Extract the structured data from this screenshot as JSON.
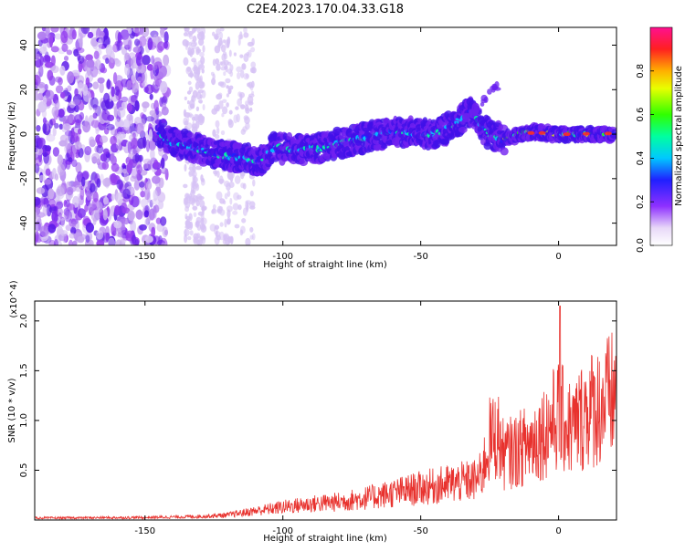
{
  "title": "C2E4.2023.170.04.33.G18",
  "chart_data": [
    {
      "type": "heatmap",
      "xlabel": "Height of straight line (km)",
      "ylabel": "Frequency (Hz)",
      "xlim": [
        -190,
        21
      ],
      "ylim": [
        -50,
        48
      ],
      "xticks": [
        -150,
        -100,
        -50,
        0
      ],
      "yticks": [
        -40,
        -20,
        0,
        20,
        40
      ],
      "colorbar": {
        "label": "Normalized spectral amplitude",
        "range": [
          0.0,
          1.0
        ],
        "ticks": [
          "0.0",
          "0.2",
          "0.4",
          "0.6",
          "0.8"
        ]
      },
      "ridge": [
        {
          "x": -143,
          "y": -3
        },
        {
          "x": -135,
          "y": -5
        },
        {
          "x": -125,
          "y": -9
        },
        {
          "x": -115,
          "y": -11
        },
        {
          "x": -108,
          "y": -12
        },
        {
          "x": -103,
          "y": -6
        },
        {
          "x": -95,
          "y": -7
        },
        {
          "x": -85,
          "y": -6
        },
        {
          "x": -75,
          "y": -3
        },
        {
          "x": -65,
          "y": 0
        },
        {
          "x": -55,
          "y": 1
        },
        {
          "x": -45,
          "y": 0
        },
        {
          "x": -38,
          "y": 4
        },
        {
          "x": -32,
          "y": 10
        },
        {
          "x": -25,
          "y": 0
        },
        {
          "x": -20,
          "y": -2
        },
        {
          "x": -10,
          "y": 1
        },
        {
          "x": 0,
          "y": 0
        },
        {
          "x": 10,
          "y": 0
        },
        {
          "x": 20,
          "y": 0
        }
      ]
    },
    {
      "type": "line",
      "xlabel": "Height of straight line (km)",
      "ylabel": "SNR (10 * v/v)",
      "y_multiplier": "(x10^4)",
      "xlim": [
        -190,
        21
      ],
      "ylim": [
        0,
        22000
      ],
      "xticks": [
        -150,
        -100,
        -50,
        0
      ],
      "yticks": [
        {
          "value": 5000,
          "label": "0.5"
        },
        {
          "value": 10000,
          "label": "1.0"
        },
        {
          "value": 15000,
          "label": "1.5"
        },
        {
          "value": 20000,
          "label": "2.0"
        }
      ],
      "color": "#e8322e",
      "series": [
        {
          "x": [
            -190,
            -170,
            -150,
            -130,
            -120,
            -110,
            -100,
            -90,
            -80,
            -70,
            -60,
            -50,
            -40,
            -30,
            -28,
            -25,
            -22,
            -20,
            -15,
            -10,
            -5,
            0,
            5,
            10,
            15,
            20
          ],
          "y": [
            200,
            220,
            250,
            350,
            500,
            900,
            1300,
            1600,
            1800,
            2200,
            2700,
            3200,
            3600,
            4000,
            4500,
            8000,
            8500,
            6500,
            7000,
            7800,
            9000,
            10500,
            9000,
            11000,
            11500,
            12500
          ]
        }
      ]
    }
  ]
}
